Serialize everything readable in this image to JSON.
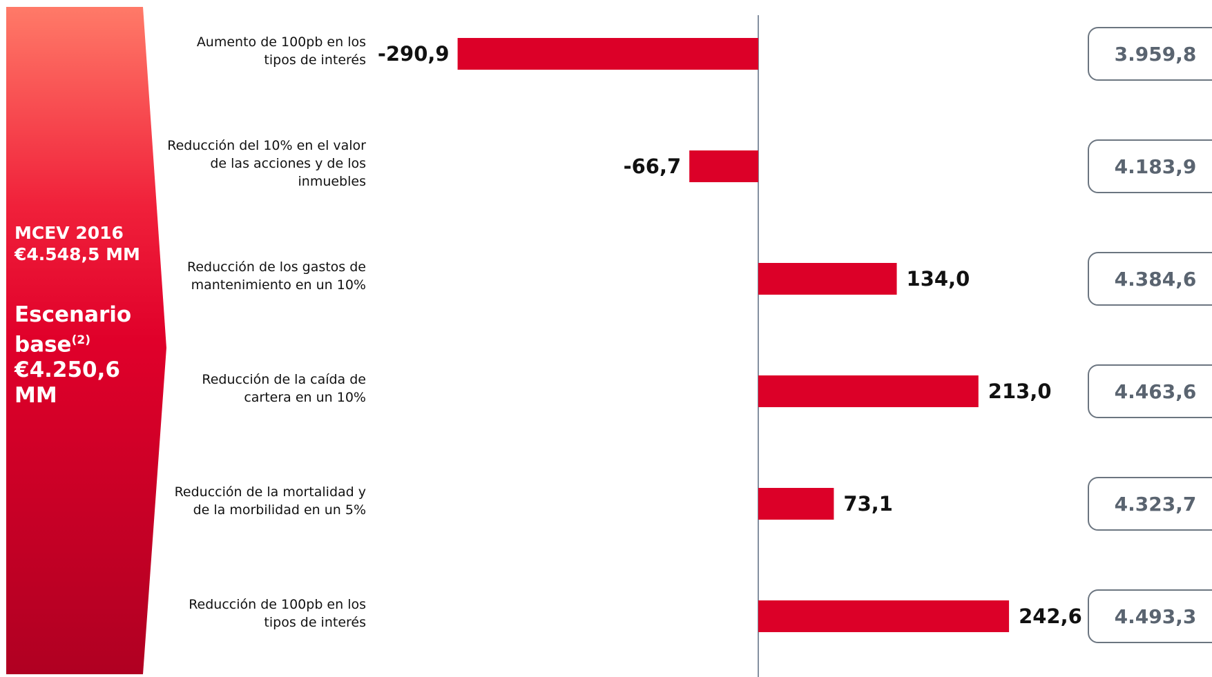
{
  "chart_data": {
    "type": "bar",
    "orientation": "horizontal",
    "categories": [
      "Aumento de 100pb en los tipos de interés",
      "Reducción del 10% en el valor de las acciones y de los inmuebles",
      "Reducción de los gastos de mantenimiento en un 10%",
      "Reducción de la caída de cartera en un 10%",
      "Reducción de la mortalidad y de la morbilidad en un 5%",
      "Reducción de 100pb en los tipos de interés"
    ],
    "values": [
      -290.9,
      -66.7,
      134.0,
      213.0,
      73.1,
      242.6
    ],
    "value_labels": [
      "-290,9",
      "-66,7",
      "134,0",
      "213,0",
      "73,1",
      "242,6"
    ],
    "results": [
      "3.959,8",
      "4.183,9",
      "4.384,6",
      "4.463,6",
      "4.323,7",
      "4.493,3"
    ],
    "color": "#dc0028",
    "xlim": [
      -300,
      300
    ],
    "panel": {
      "line1": "MCEV 2016",
      "line2": "€4.548,5 MM",
      "line3": "Escenario base",
      "footnote": "(2)",
      "line4": "€4.250,6 MM"
    }
  }
}
